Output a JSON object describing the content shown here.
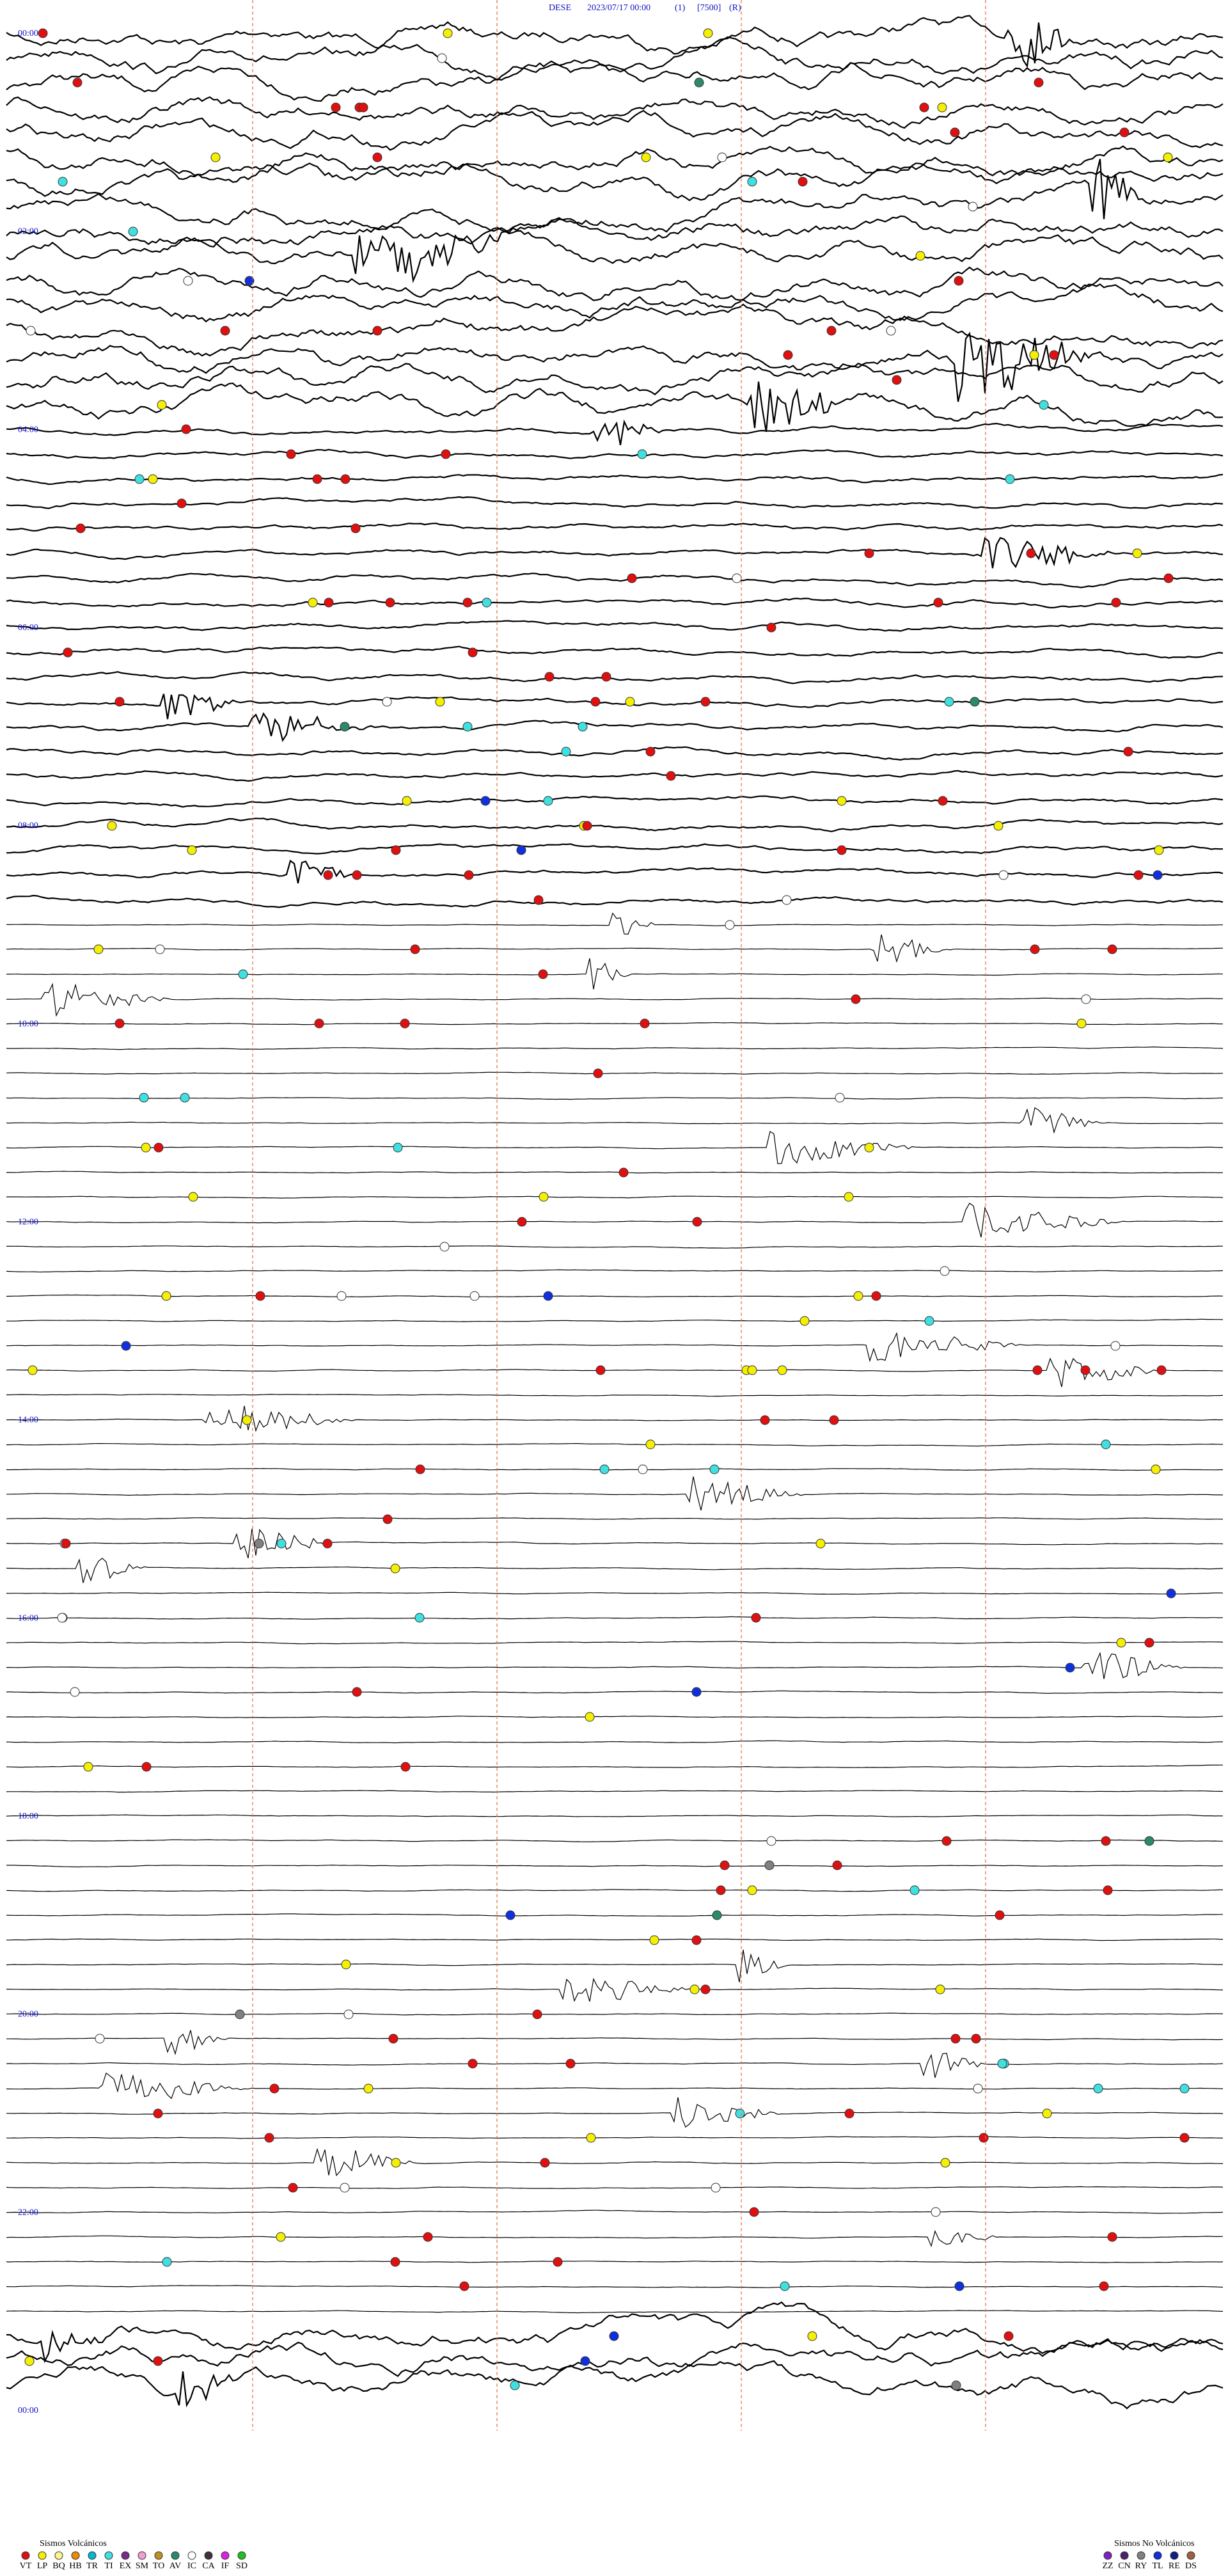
{
  "header": {
    "station": "DESE",
    "datetime": "2023/07/17 00:00",
    "component": "(1)",
    "scale": "[7500]",
    "mode": "(R)"
  },
  "time_labels": [
    "00:00",
    "02:00",
    "04:00",
    "06:00",
    "08:00",
    "10:00",
    "12:00",
    "14:00",
    "16:00",
    "18:00",
    "20:00",
    "22:00",
    "00:00"
  ],
  "legend": {
    "volcanic": {
      "title": "Sismos Volcánicos",
      "items": [
        {
          "label": "VT",
          "color": "#e01010"
        },
        {
          "label": "LP",
          "color": "#f5f000"
        },
        {
          "label": "BQ",
          "color": "#fff68a"
        },
        {
          "label": "HB",
          "color": "#f08a00"
        },
        {
          "label": "TR",
          "color": "#00b8d0"
        },
        {
          "label": "TI",
          "color": "#40e0e0"
        },
        {
          "label": "EX",
          "color": "#7a2a8a"
        },
        {
          "label": "SM",
          "color": "#f0a0d0"
        },
        {
          "label": "TO",
          "color": "#c09020"
        },
        {
          "label": "AV",
          "color": "#2a8a6a"
        },
        {
          "label": "IC",
          "color": "#ffffff"
        },
        {
          "label": "CA",
          "color": "#403040"
        },
        {
          "label": "IF",
          "color": "#e020e0"
        },
        {
          "label": "SD",
          "color": "#20c020"
        }
      ]
    },
    "nonvolcanic": {
      "title": "Sismos No Volcánicos",
      "items": [
        {
          "label": "ZZ",
          "color": "#8020c0"
        },
        {
          "label": "CN",
          "color": "#502070"
        },
        {
          "label": "RY",
          "color": "#808080"
        },
        {
          "label": "TL",
          "color": "#1030e0"
        },
        {
          "label": "RE",
          "color": "#102080"
        },
        {
          "label": "DS",
          "color": "#a06040"
        }
      ]
    }
  }
}
